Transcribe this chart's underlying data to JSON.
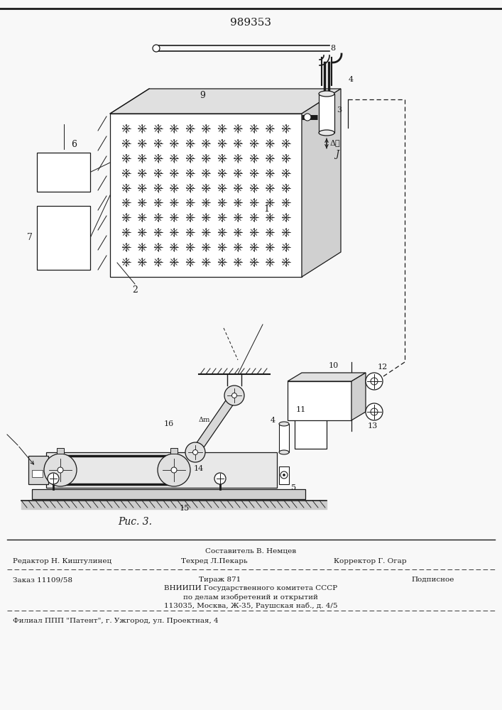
{
  "patent_number": "989353",
  "fig_label": "Рис. 3.",
  "bg_color": "#f8f8f8",
  "line_color": "#1a1a1a",
  "footer": {
    "composer": "Составитель В. Немцев",
    "editor": "Редактор Н. Киштулинец",
    "techred": "Техред Л.Пекарь",
    "corrector": "Корректор Г. Огар",
    "order": "Заказ 11109/58",
    "circulation": "Тираж 871",
    "subscription": "Подписное",
    "vniipи": "ВНИИПИ Государственного комитета СССР",
    "line5": "по делам изобретений и открытий",
    "line6": "113035, Москва, Ж-35, Раушская наб., д. 4/5",
    "line7": "Филиал ППП \"Патент\", г. Ужгород, ул. Проектная, 4"
  }
}
